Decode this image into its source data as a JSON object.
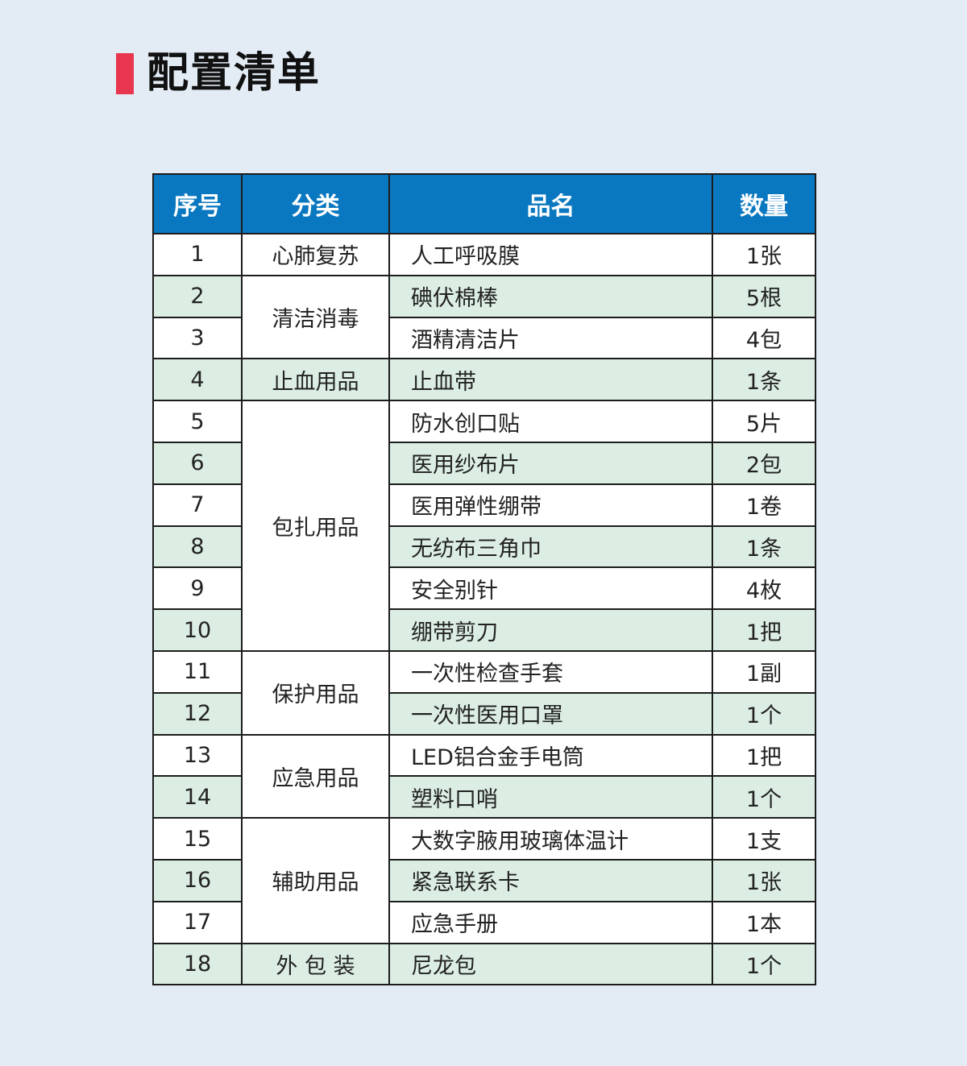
{
  "title": "配置清单",
  "colors": {
    "accent": "#e8364e",
    "header": "#0a78c0",
    "alt_row": "#dceee3",
    "background": "#e3ecf5"
  },
  "headers": [
    "序号",
    "分类",
    "品名",
    "数量"
  ],
  "categories": [
    {
      "label": "心肺复苏",
      "rows": 1
    },
    {
      "label": "清洁消毒",
      "rows": 2
    },
    {
      "label": "止血用品",
      "rows": 1
    },
    {
      "label": "包扎用品",
      "rows": 6
    },
    {
      "label": "保护用品",
      "rows": 2
    },
    {
      "label": "应急用品",
      "rows": 2
    },
    {
      "label": "辅助用品",
      "rows": 3
    },
    {
      "label": "外 包 装",
      "rows": 1
    }
  ],
  "rows": [
    {
      "no": "1",
      "name": "人工呼吸膜",
      "qty": "1张"
    },
    {
      "no": "2",
      "name": "碘伏棉棒",
      "qty": "5根"
    },
    {
      "no": "3",
      "name": "酒精清洁片",
      "qty": "4包"
    },
    {
      "no": "4",
      "name": "止血带",
      "qty": "1条"
    },
    {
      "no": "5",
      "name": "防水创口贴",
      "qty": "5片"
    },
    {
      "no": "6",
      "name": "医用纱布片",
      "qty": "2包"
    },
    {
      "no": "7",
      "name": "医用弹性绷带",
      "qty": "1卷"
    },
    {
      "no": "8",
      "name": "无纺布三角巾",
      "qty": "1条"
    },
    {
      "no": "9",
      "name": "安全别针",
      "qty": "4枚"
    },
    {
      "no": "10",
      "name": "绷带剪刀",
      "qty": "1把"
    },
    {
      "no": "11",
      "name": "一次性检查手套",
      "qty": "1副"
    },
    {
      "no": "12",
      "name": "一次性医用口罩",
      "qty": "1个"
    },
    {
      "no": "13",
      "name": "LED铝合金手电筒",
      "qty": "1把"
    },
    {
      "no": "14",
      "name": "塑料口哨",
      "qty": "1个"
    },
    {
      "no": "15",
      "name": "大数字腋用玻璃体温计",
      "qty": "1支"
    },
    {
      "no": "16",
      "name": "紧急联系卡",
      "qty": "1张"
    },
    {
      "no": "17",
      "name": "应急手册",
      "qty": "1本"
    },
    {
      "no": "18",
      "name": "尼龙包",
      "qty": "1个"
    }
  ]
}
